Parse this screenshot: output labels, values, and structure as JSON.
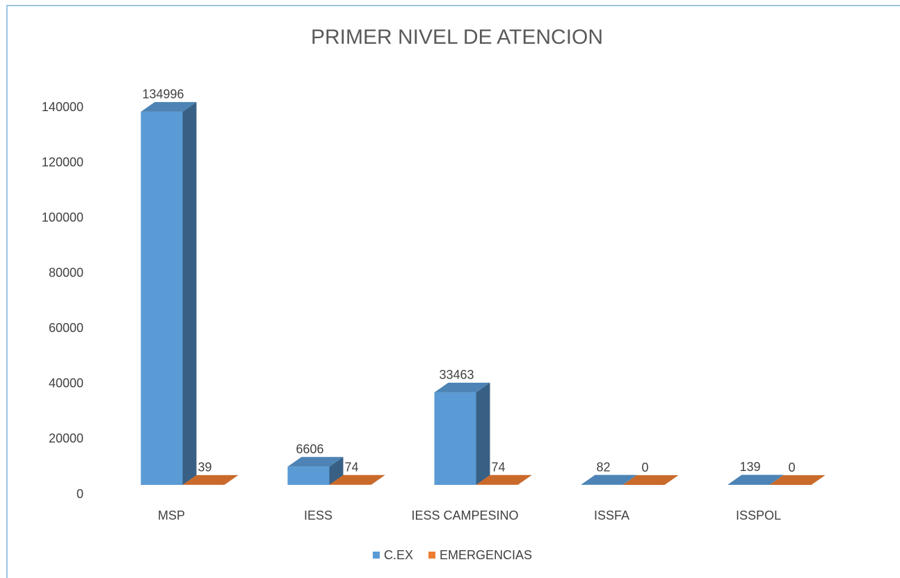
{
  "chart_data": {
    "type": "bar3d",
    "title": "PRIMER NIVEL DE ATENCION",
    "categories": [
      "MSP",
      "IESS",
      "IESS CAMPESINO",
      "ISSFA",
      "ISSPOL"
    ],
    "series": [
      {
        "name": "C.EX",
        "color": "#5b9bd5",
        "values": [
          134996,
          6606,
          33463,
          82,
          139
        ]
      },
      {
        "name": "EMERGENCIAS",
        "color": "#ed7d31",
        "values": [
          39,
          74,
          74,
          0,
          0
        ]
      }
    ],
    "ylim": [
      0,
      140000
    ],
    "yticks": [
      0,
      20000,
      40000,
      60000,
      80000,
      100000,
      120000,
      140000
    ],
    "legend": "bottom"
  }
}
